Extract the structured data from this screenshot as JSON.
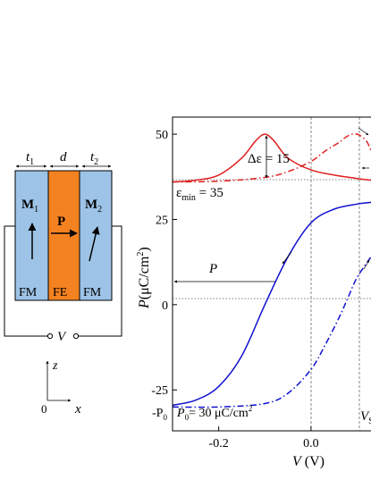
{
  "device": {
    "t1": "t",
    "t1_sub": "1",
    "d": "d",
    "t2": "t",
    "t2_sub": "2",
    "m1": "M",
    "m1_sub": "1",
    "p": "P",
    "m2": "M",
    "m2_sub": "2",
    "fm_left": "FM",
    "fe": "FE",
    "fm_right": "FM",
    "v": "V",
    "z": "z",
    "origin": "0",
    "x": "x",
    "colors": {
      "fm": "#9dc3e6",
      "fe": "#f58220"
    }
  },
  "chart_labels": {
    "ylabel_main": "P",
    "ylabel_unit": "(μC/cm",
    "ylabel_sup": "2",
    "ylabel_close": ")",
    "xlabel_main": "V",
    "xlabel_unit": " (V)",
    "delta_eps": "Δε = 15",
    "eps_min_main": "ε",
    "eps_min_sub": "min",
    "eps_min_rest": " = 35",
    "p_arrow_label": "P",
    "neg_p0_main": "-P",
    "neg_p0_sub": "0",
    "p0_main": "P",
    "p0_sub": "0",
    "p0_rest": "= 30 μC/cm",
    "p0_sup": "2",
    "vs_main": "V",
    "vs_sub": "S"
  },
  "chart_data": {
    "type": "line",
    "xlabel": "V (V)",
    "ylabel": "P (μC/cm2)",
    "xlim": [
      -0.3,
      0.13
    ],
    "ylim": [
      -37,
      55
    ],
    "xticks": [
      -0.2,
      0.0
    ],
    "xtick_labels": [
      "-0.2",
      "0.0"
    ],
    "yticks": [
      -25,
      0,
      25,
      50
    ],
    "ytick_labels": [
      "-25",
      "0",
      "25",
      "50"
    ],
    "reference_lines": {
      "vertical_dashed": [
        0.0,
        0.1
      ],
      "horizontal_dotted": [
        0,
        36
      ]
    },
    "series": [
      {
        "color": "#1010d0",
        "style": "solid",
        "x": [
          -0.3,
          -0.25,
          -0.2,
          -0.15,
          -0.1,
          -0.05,
          0.0,
          0.05,
          0.1,
          0.13
        ],
        "y": [
          -29.5,
          -28,
          -24,
          -15,
          0,
          14,
          24,
          28,
          29.5,
          30
        ]
      },
      {
        "color": "#1010d0",
        "style": "dash-dot",
        "x": [
          -0.3,
          -0.2,
          -0.1,
          -0.05,
          0.0,
          0.03,
          0.06,
          0.08,
          0.1,
          0.13
        ],
        "y": [
          -30,
          -30,
          -29,
          -26,
          -19,
          -12,
          -4,
          2,
          8,
          14
        ]
      },
      {
        "color": "#e02020",
        "style": "solid",
        "x": [
          -0.3,
          -0.25,
          -0.2,
          -0.15,
          -0.12,
          -0.1,
          -0.08,
          -0.05,
          0.0,
          0.05,
          0.1,
          0.13
        ],
        "y": [
          36,
          36.5,
          38,
          43,
          48,
          50,
          48,
          43,
          39.5,
          38,
          37,
          36.5
        ]
      },
      {
        "color": "#e02020",
        "style": "dash-dot",
        "x": [
          -0.3,
          -0.2,
          -0.1,
          -0.05,
          0.0,
          0.03,
          0.06,
          0.08,
          0.1,
          0.12,
          0.13
        ],
        "y": [
          36,
          36.2,
          37.3,
          39,
          42,
          45,
          47.5,
          49.5,
          50,
          48,
          45
        ]
      }
    ]
  }
}
